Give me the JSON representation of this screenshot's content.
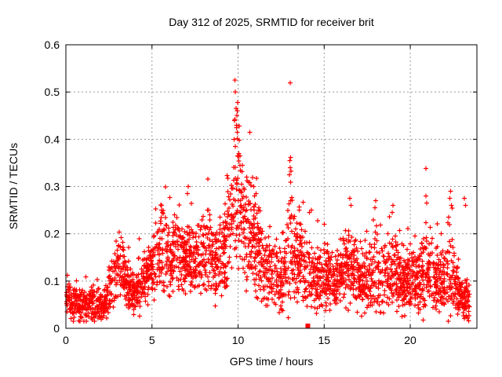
{
  "title": "Day 312 of 2025, SRMTID for receiver brit",
  "x_axis": {
    "label": "GPS time / hours"
  },
  "y_axis": {
    "label": "SRMTID / TECUs"
  },
  "chart_data": {
    "type": "scatter",
    "title": "Day 312 of 2025, SRMTID for receiver brit",
    "xlabel": "GPS time / hours",
    "ylabel": "SRMTID / TECUs",
    "xlim": [
      0,
      23.87
    ],
    "ylim": [
      0,
      0.6
    ],
    "xticks": [
      [
        0,
        "0"
      ],
      [
        5,
        "5"
      ],
      [
        10,
        "10"
      ],
      [
        15,
        "15"
      ],
      [
        20,
        "20"
      ]
    ],
    "yticks": [
      [
        0,
        "0"
      ],
      [
        0.1,
        "0.1"
      ],
      [
        0.2,
        "0.2"
      ],
      [
        0.3,
        "0.3"
      ],
      [
        0.4,
        "0.4"
      ],
      [
        0.5,
        "0.5"
      ],
      [
        0.6,
        "0.6"
      ]
    ],
    "grid": true,
    "legend": null,
    "marker": "plus",
    "marker_color": "#ff0000",
    "axis_color": "#000000",
    "grid_color": "#999999",
    "background": "#ffffff",
    "peak": {
      "t": 9.85,
      "value": 0.53
    },
    "envelope": [
      [
        0.0,
        0.075,
        0.035
      ],
      [
        0.4,
        0.055,
        0.03
      ],
      [
        1.0,
        0.05,
        0.028
      ],
      [
        1.6,
        0.05,
        0.03
      ],
      [
        2.1,
        0.045,
        0.025
      ],
      [
        2.5,
        0.07,
        0.035
      ],
      [
        2.9,
        0.12,
        0.05
      ],
      [
        3.2,
        0.13,
        0.045
      ],
      [
        3.6,
        0.09,
        0.04
      ],
      [
        4.0,
        0.07,
        0.035
      ],
      [
        4.4,
        0.1,
        0.045
      ],
      [
        4.8,
        0.11,
        0.05
      ],
      [
        5.2,
        0.14,
        0.06
      ],
      [
        5.6,
        0.17,
        0.07
      ],
      [
        6.0,
        0.15,
        0.06
      ],
      [
        6.4,
        0.16,
        0.06
      ],
      [
        6.9,
        0.15,
        0.055
      ],
      [
        7.4,
        0.14,
        0.055
      ],
      [
        7.9,
        0.15,
        0.055
      ],
      [
        8.3,
        0.16,
        0.065
      ],
      [
        8.7,
        0.14,
        0.055
      ],
      [
        9.1,
        0.15,
        0.06
      ],
      [
        9.5,
        0.19,
        0.075
      ],
      [
        9.75,
        0.28,
        0.13
      ],
      [
        9.95,
        0.3,
        0.14
      ],
      [
        10.15,
        0.25,
        0.1
      ],
      [
        10.45,
        0.21,
        0.09
      ],
      [
        10.8,
        0.2,
        0.085
      ],
      [
        11.1,
        0.17,
        0.075
      ],
      [
        11.5,
        0.13,
        0.055
      ],
      [
        12.0,
        0.11,
        0.05
      ],
      [
        12.5,
        0.1,
        0.05
      ],
      [
        12.9,
        0.15,
        0.09
      ],
      [
        13.05,
        0.21,
        0.12
      ],
      [
        13.25,
        0.14,
        0.07
      ],
      [
        13.6,
        0.14,
        0.07
      ],
      [
        14.0,
        0.11,
        0.05
      ],
      [
        14.5,
        0.1,
        0.05
      ],
      [
        15.0,
        0.11,
        0.05
      ],
      [
        15.5,
        0.1,
        0.05
      ],
      [
        16.0,
        0.12,
        0.055
      ],
      [
        16.5,
        0.13,
        0.07
      ],
      [
        17.0,
        0.11,
        0.05
      ],
      [
        17.5,
        0.1,
        0.05
      ],
      [
        18.0,
        0.11,
        0.06
      ],
      [
        18.5,
        0.11,
        0.05
      ],
      [
        19.0,
        0.13,
        0.065
      ],
      [
        19.5,
        0.09,
        0.045
      ],
      [
        20.0,
        0.1,
        0.05
      ],
      [
        20.5,
        0.1,
        0.05
      ],
      [
        20.9,
        0.12,
        0.07
      ],
      [
        21.3,
        0.1,
        0.05
      ],
      [
        21.8,
        0.09,
        0.05
      ],
      [
        22.3,
        0.12,
        0.08
      ],
      [
        22.7,
        0.08,
        0.045
      ],
      [
        23.0,
        0.06,
        0.035
      ],
      [
        23.45,
        0.05,
        0.03
      ]
    ],
    "outliers": [
      [
        9.82,
        0.525
      ],
      [
        9.85,
        0.5
      ],
      [
        9.88,
        0.465
      ],
      [
        9.8,
        0.44
      ],
      [
        9.9,
        0.43
      ],
      [
        9.95,
        0.415
      ],
      [
        9.78,
        0.4
      ],
      [
        10.05,
        0.37
      ],
      [
        10.25,
        0.345
      ],
      [
        10.5,
        0.32
      ],
      [
        10.9,
        0.3
      ],
      [
        11.05,
        0.285
      ],
      [
        13.0,
        0.355
      ],
      [
        13.02,
        0.34
      ],
      [
        12.98,
        0.325
      ],
      [
        13.55,
        0.25
      ],
      [
        14.25,
        0.25
      ],
      [
        5.55,
        0.26
      ],
      [
        5.6,
        0.245
      ],
      [
        6.3,
        0.24
      ],
      [
        7.1,
        0.3
      ],
      [
        7.05,
        0.285
      ],
      [
        8.3,
        0.25
      ],
      [
        8.35,
        0.24
      ],
      [
        3.05,
        0.175
      ],
      [
        15.0,
        0.22
      ],
      [
        16.5,
        0.275
      ],
      [
        16.55,
        0.26
      ],
      [
        18.0,
        0.27
      ],
      [
        17.95,
        0.255
      ],
      [
        19.0,
        0.26
      ],
      [
        18.95,
        0.245
      ],
      [
        20.9,
        0.28
      ],
      [
        20.95,
        0.265
      ],
      [
        22.35,
        0.29
      ],
      [
        22.3,
        0.275
      ],
      [
        22.4,
        0.26
      ],
      [
        23.15,
        0.275
      ],
      [
        23.2,
        0.26
      ],
      [
        0.1,
        0.112
      ],
      [
        22.2,
        0.015
      ]
    ],
    "special_points": [
      {
        "t": 14.05,
        "value": 0.005,
        "marker": "filled-square"
      }
    ],
    "generation": {
      "seed": 312,
      "t_start": 0.04,
      "t_end": 23.45,
      "epoch_step": 0.035,
      "points_per_epoch_min": 2,
      "points_per_epoch_max": 6
    }
  }
}
